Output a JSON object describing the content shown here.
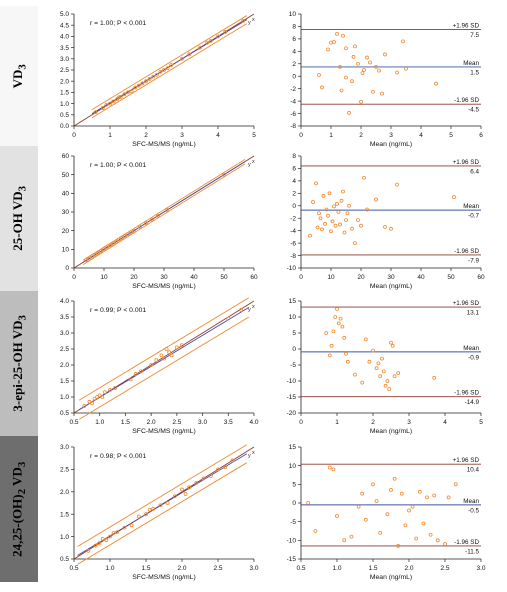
{
  "row_labels": [
    {
      "main": "VD",
      "sub": "3",
      "rest": ""
    },
    {
      "main": "25-OH VD",
      "sub": "3",
      "rest": ""
    },
    {
      "main": "3-epi-25-OH VD",
      "sub": "3",
      "rest": ""
    },
    {
      "main": "24,25-(OH)",
      "sub": "2",
      "rest": " VD",
      "sub2": "3"
    }
  ],
  "colors": {
    "band_backgrounds": [
      "#f7f7f7",
      "#e2e2e2",
      "#bdbdbd",
      "#6e6e6e"
    ],
    "band_text": [
      "#000000",
      "#000000",
      "#000000",
      "#000000"
    ],
    "points": "#ee8a32",
    "limit_lines": "#ee8a32",
    "identity_line": "#8b3a2a",
    "fit_line": "#4a4aa0",
    "reference_lines": "#8b3a2a",
    "mean_line": "#3a57a0",
    "axis": "#222222"
  },
  "chart_data": [
    {
      "type": "scatter",
      "row": 0,
      "plot": "correlation",
      "annotation": "r = 1.00; P < 0.001",
      "xlabel": "SFC-MS/MS (ng/mL)",
      "xlim": [
        0,
        5
      ],
      "ylim": [
        0,
        5
      ],
      "xticks": [
        "0",
        "1",
        "2",
        "3",
        "4",
        "5"
      ],
      "yticks": [
        "0.0",
        "0.5",
        "1.0",
        "1.5",
        "2.0",
        "2.5",
        "3.0",
        "3.5",
        "4.0",
        "4.5",
        "5.0"
      ],
      "line_labels": [
        "x",
        "y"
      ],
      "fit_line": [
        [
          0.5,
          0.55
        ],
        [
          4.8,
          4.75
        ]
      ],
      "limit_band": 0.18,
      "points": [
        [
          0.6,
          0.62
        ],
        [
          0.8,
          0.8
        ],
        [
          0.9,
          0.95
        ],
        [
          1.0,
          1.0
        ],
        [
          1.1,
          1.1
        ],
        [
          1.2,
          1.2
        ],
        [
          1.25,
          1.28
        ],
        [
          1.3,
          1.3
        ],
        [
          1.4,
          1.42
        ],
        [
          1.5,
          1.5
        ],
        [
          1.6,
          1.55
        ],
        [
          1.7,
          1.72
        ],
        [
          1.8,
          1.8
        ],
        [
          1.9,
          1.9
        ],
        [
          2.0,
          2.0
        ],
        [
          2.1,
          2.1
        ],
        [
          2.2,
          2.2
        ],
        [
          2.3,
          2.28
        ],
        [
          2.4,
          2.42
        ],
        [
          2.5,
          2.5
        ],
        [
          2.6,
          2.58
        ],
        [
          2.7,
          2.72
        ],
        [
          3.0,
          3.0
        ],
        [
          3.2,
          3.2
        ],
        [
          3.5,
          3.5
        ],
        [
          3.7,
          3.72
        ],
        [
          3.8,
          3.8
        ],
        [
          4.0,
          4.0
        ],
        [
          4.2,
          4.2
        ],
        [
          4.7,
          4.7
        ]
      ]
    },
    {
      "type": "scatter",
      "row": 0,
      "plot": "bland-altman",
      "xlabel": "Mean (ng/mL)",
      "xlim": [
        0,
        6
      ],
      "ylim": [
        -8,
        10
      ],
      "xticks": [
        "0",
        "1",
        "2",
        "3",
        "4",
        "5",
        "6"
      ],
      "yticks": [
        "-8",
        "-6",
        "-4",
        "-2",
        "0",
        "2",
        "4",
        "6",
        "8",
        "10"
      ],
      "upper_limit": {
        "label": "+1.96 SD",
        "value_label": "7.5",
        "value": 7.5
      },
      "mean": {
        "label": "Mean",
        "value_label": "1.5",
        "value": 1.5
      },
      "lower_limit": {
        "label": "-1.96 SD",
        "value_label": "-4.5",
        "value": -4.5
      },
      "points": [
        [
          0.6,
          0.2
        ],
        [
          0.7,
          -1.8
        ],
        [
          0.9,
          4.3
        ],
        [
          1.0,
          5.4
        ],
        [
          1.1,
          5.5
        ],
        [
          1.2,
          6.8
        ],
        [
          1.3,
          1.5
        ],
        [
          1.35,
          -2.3
        ],
        [
          1.4,
          6.5
        ],
        [
          1.5,
          4.5
        ],
        [
          1.5,
          -0.2
        ],
        [
          1.6,
          -5.9
        ],
        [
          1.7,
          -0.8
        ],
        [
          1.75,
          3.1
        ],
        [
          1.8,
          4.8
        ],
        [
          1.9,
          2.0
        ],
        [
          2.0,
          -4.1
        ],
        [
          2.05,
          0.5
        ],
        [
          2.1,
          1.0
        ],
        [
          2.2,
          3.0
        ],
        [
          2.3,
          2.2
        ],
        [
          2.4,
          -2.5
        ],
        [
          2.5,
          1.5
        ],
        [
          2.6,
          0.9
        ],
        [
          2.7,
          -2.8
        ],
        [
          2.8,
          3.5
        ],
        [
          3.2,
          0.6
        ],
        [
          3.4,
          5.6
        ],
        [
          3.5,
          1.2
        ],
        [
          4.5,
          -1.2
        ]
      ]
    },
    {
      "type": "scatter",
      "row": 1,
      "plot": "correlation",
      "annotation": "r = 1.00; P < 0.001",
      "xlabel": "SFC-MS/MS (ng/mL)",
      "xlim": [
        0,
        60
      ],
      "ylim": [
        0,
        60
      ],
      "xticks": [
        "0",
        "10",
        "20",
        "30",
        "40",
        "50",
        "60"
      ],
      "yticks": [
        "0",
        "10",
        "20",
        "30",
        "40",
        "50",
        "60"
      ],
      "line_labels": [
        "x",
        "y"
      ],
      "fit_line": [
        [
          3,
          3
        ],
        [
          57,
          57
        ]
      ],
      "limit_band": 1.2,
      "points": [
        [
          4,
          4.2
        ],
        [
          5,
          5
        ],
        [
          6,
          6.1
        ],
        [
          7,
          7
        ],
        [
          8,
          8
        ],
        [
          9,
          9.2
        ],
        [
          10,
          10
        ],
        [
          11,
          11
        ],
        [
          12,
          12.1
        ],
        [
          13,
          13
        ],
        [
          14,
          14
        ],
        [
          15,
          15.2
        ],
        [
          16,
          16
        ],
        [
          17,
          17
        ],
        [
          18,
          18.1
        ],
        [
          19,
          19
        ],
        [
          20,
          20
        ],
        [
          22,
          22.1
        ],
        [
          24,
          24
        ],
        [
          26,
          26
        ],
        [
          28,
          28
        ],
        [
          31,
          31.1
        ],
        [
          50,
          50
        ]
      ]
    },
    {
      "type": "scatter",
      "row": 1,
      "plot": "bland-altman",
      "xlabel": "Mean (ng/mL)",
      "xlim": [
        0,
        60
      ],
      "ylim": [
        -10,
        8
      ],
      "xticks": [
        "0",
        "10",
        "20",
        "30",
        "40",
        "50",
        "60"
      ],
      "yticks": [
        "-10",
        "-8",
        "-6",
        "-4",
        "-2",
        "0",
        "2",
        "4",
        "6",
        "8"
      ],
      "upper_limit": {
        "label": "+1.96 SD",
        "value_label": "6.4",
        "value": 6.4
      },
      "mean": {
        "label": "Mean",
        "value_label": "-0.7",
        "value": -0.7
      },
      "lower_limit": {
        "label": "-1.96 SD",
        "value_label": "-7.9",
        "value": -7.9
      },
      "points": [
        [
          3,
          -4.8
        ],
        [
          4,
          0.6
        ],
        [
          5,
          3.6
        ],
        [
          5.5,
          -3.5
        ],
        [
          6,
          -1.2
        ],
        [
          6.5,
          -2.0
        ],
        [
          7,
          -3.8
        ],
        [
          7.5,
          1.6
        ],
        [
          8,
          -2.9
        ],
        [
          8.5,
          -0.6
        ],
        [
          9,
          -1.6
        ],
        [
          9.5,
          2.0
        ],
        [
          10,
          -4.1
        ],
        [
          10.5,
          -2.5
        ],
        [
          11,
          -0.1
        ],
        [
          11.5,
          -3.2
        ],
        [
          12,
          0.3
        ],
        [
          12.5,
          -1.0
        ],
        [
          13,
          -3.0
        ],
        [
          13.5,
          0.8
        ],
        [
          14,
          2.3
        ],
        [
          14.5,
          -4.3
        ],
        [
          15,
          -2.3
        ],
        [
          15.5,
          -1.2
        ],
        [
          16,
          0.0
        ],
        [
          17,
          -3.7
        ],
        [
          18,
          -6.0
        ],
        [
          19,
          -2.3
        ],
        [
          20,
          -3.2
        ],
        [
          21,
          4.5
        ],
        [
          22,
          -0.6
        ],
        [
          25,
          1.0
        ],
        [
          28,
          -3.4
        ],
        [
          30,
          -3.7
        ],
        [
          32,
          3.4
        ],
        [
          51,
          1.4
        ]
      ]
    },
    {
      "type": "scatter",
      "row": 2,
      "plot": "correlation",
      "annotation": "r = 0.99; P < 0.001",
      "xlabel": "SFC-MS/MS (ng/mL)",
      "xlim": [
        0.5,
        4.0
      ],
      "ylim": [
        0.5,
        4.0
      ],
      "xticks": [
        "0.5",
        "1.0",
        "1.5",
        "2.0",
        "2.5",
        "3.0",
        "3.5",
        "4.0"
      ],
      "yticks": [
        "0.5",
        "1.0",
        "1.5",
        "2.0",
        "2.5",
        "3.0",
        "3.5",
        "4.0"
      ],
      "line_labels": [
        "x",
        "y"
      ],
      "fit_line": [
        [
          0.6,
          0.6
        ],
        [
          3.9,
          3.8
        ]
      ],
      "limit_band": 0.3,
      "points": [
        [
          0.7,
          0.72
        ],
        [
          0.8,
          0.85
        ],
        [
          0.85,
          0.8
        ],
        [
          0.9,
          0.95
        ],
        [
          0.95,
          1.0
        ],
        [
          1.0,
          1.05
        ],
        [
          1.05,
          1.0
        ],
        [
          1.1,
          1.15
        ],
        [
          1.2,
          1.22
        ],
        [
          1.3,
          1.28
        ],
        [
          1.6,
          1.55
        ],
        [
          1.7,
          1.72
        ],
        [
          1.8,
          1.8
        ],
        [
          2.0,
          2.0
        ],
        [
          2.1,
          2.15
        ],
        [
          2.2,
          2.3
        ],
        [
          2.25,
          2.2
        ],
        [
          2.3,
          2.5
        ],
        [
          2.35,
          2.4
        ],
        [
          2.4,
          2.3
        ],
        [
          2.5,
          2.55
        ],
        [
          2.6,
          2.62
        ],
        [
          3.5,
          3.45
        ],
        [
          3.75,
          3.72
        ]
      ]
    },
    {
      "type": "scatter",
      "row": 2,
      "plot": "bland-altman",
      "xlabel": "Mean (ng/mL)",
      "xlim": [
        0,
        5
      ],
      "ylim": [
        -20,
        15
      ],
      "xticks": [
        "0",
        "1",
        "2",
        "3",
        "4",
        "5"
      ],
      "yticks": [
        "-20",
        "-15",
        "-10",
        "-5",
        "0",
        "5",
        "10",
        "15"
      ],
      "upper_limit": {
        "label": "+1.96 SD",
        "value_label": "13.1",
        "value": 13.1
      },
      "mean": {
        "label": "Mean",
        "value_label": "-0.9",
        "value": -0.9
      },
      "lower_limit": {
        "label": "-1.96 SD",
        "value_label": "-14.9",
        "value": -14.9
      },
      "points": [
        [
          0.7,
          5.0
        ],
        [
          0.8,
          -2.0
        ],
        [
          0.85,
          1.0
        ],
        [
          0.9,
          5.5
        ],
        [
          0.95,
          10.0
        ],
        [
          1.0,
          12.5
        ],
        [
          1.05,
          8.0
        ],
        [
          1.1,
          9.5
        ],
        [
          1.15,
          7.0
        ],
        [
          1.2,
          3.5
        ],
        [
          1.25,
          -1.5
        ],
        [
          1.3,
          -4.0
        ],
        [
          1.5,
          -8.0
        ],
        [
          1.7,
          -10.5
        ],
        [
          1.8,
          3.0
        ],
        [
          1.9,
          -4.0
        ],
        [
          2.0,
          -0.5
        ],
        [
          2.1,
          -6.0
        ],
        [
          2.15,
          -4.5
        ],
        [
          2.2,
          -8.5
        ],
        [
          2.25,
          -3.0
        ],
        [
          2.3,
          -7.0
        ],
        [
          2.35,
          -11.5
        ],
        [
          2.4,
          -10.0
        ],
        [
          2.45,
          -12.5
        ],
        [
          2.5,
          2.0
        ],
        [
          2.55,
          1.0
        ],
        [
          2.6,
          -8.5
        ],
        [
          2.7,
          -7.5
        ],
        [
          3.7,
          -9.0
        ]
      ]
    },
    {
      "type": "scatter",
      "row": 3,
      "plot": "correlation",
      "annotation": "r = 0.98; P < 0.001",
      "xlabel": "SFC-MS/MS (ng/mL)",
      "xlim": [
        0.5,
        3.0
      ],
      "ylim": [
        0.5,
        3.0
      ],
      "xticks": [
        "0.5",
        "1.0",
        "1.5",
        "2.0",
        "2.5",
        "3.0"
      ],
      "yticks": [
        "0.5",
        "1.0",
        "1.5",
        "2.0",
        "2.5",
        "3.0"
      ],
      "line_labels": [
        "x",
        "y"
      ],
      "fit_line": [
        [
          0.55,
          0.58
        ],
        [
          2.9,
          2.85
        ]
      ],
      "limit_band": 0.2,
      "points": [
        [
          0.7,
          0.68
        ],
        [
          0.8,
          0.8
        ],
        [
          0.85,
          0.85
        ],
        [
          0.9,
          0.95
        ],
        [
          0.95,
          0.92
        ],
        [
          1.0,
          1.0
        ],
        [
          1.05,
          1.08
        ],
        [
          1.1,
          1.1
        ],
        [
          1.2,
          1.2
        ],
        [
          1.3,
          1.25
        ],
        [
          1.4,
          1.45
        ],
        [
          1.5,
          1.5
        ],
        [
          1.55,
          1.6
        ],
        [
          1.6,
          1.62
        ],
        [
          1.7,
          1.7
        ],
        [
          1.8,
          1.75
        ],
        [
          1.9,
          1.9
        ],
        [
          2.0,
          2.05
        ],
        [
          2.05,
          1.95
        ],
        [
          2.1,
          2.1
        ],
        [
          2.2,
          2.2
        ],
        [
          2.3,
          2.3
        ],
        [
          2.4,
          2.35
        ],
        [
          2.5,
          2.5
        ],
        [
          2.6,
          2.55
        ],
        [
          2.7,
          2.7
        ]
      ]
    },
    {
      "type": "scatter",
      "row": 3,
      "plot": "bland-altman",
      "xlabel": "Mean (ng/mL)",
      "xlim": [
        0.5,
        3.0
      ],
      "ylim": [
        -15,
        15
      ],
      "xticks": [
        "0.5",
        "1.0",
        "1.5",
        "2.0",
        "2.5",
        "3.0"
      ],
      "yticks": [
        "-15",
        "-10",
        "-5",
        "0",
        "5",
        "10",
        "15"
      ],
      "upper_limit": {
        "label": "+1.96 SD",
        "value_label": "10.4",
        "value": 10.4
      },
      "mean": {
        "label": "Mean",
        "value_label": "-0.5",
        "value": -0.5
      },
      "lower_limit": {
        "label": "-1.96 SD",
        "value_label": "-11.5",
        "value": -11.5
      },
      "points": [
        [
          0.6,
          0.0
        ],
        [
          0.7,
          -7.5
        ],
        [
          0.9,
          9.5
        ],
        [
          0.95,
          9.0
        ],
        [
          1.0,
          -3.5
        ],
        [
          1.1,
          -10.0
        ],
        [
          1.2,
          -9.0
        ],
        [
          1.3,
          -1.0
        ],
        [
          1.35,
          2.5
        ],
        [
          1.4,
          -4.5
        ],
        [
          1.5,
          5.0
        ],
        [
          1.55,
          0.5
        ],
        [
          1.6,
          -8.0
        ],
        [
          1.7,
          -3.0
        ],
        [
          1.75,
          3.5
        ],
        [
          1.8,
          6.5
        ],
        [
          1.85,
          -11.5
        ],
        [
          1.9,
          2.5
        ],
        [
          1.95,
          -6.0
        ],
        [
          2.0,
          -2.0
        ],
        [
          2.05,
          -1.0
        ],
        [
          2.1,
          -9.5
        ],
        [
          2.15,
          3.0
        ],
        [
          2.2,
          -5.5
        ],
        [
          2.25,
          1.5
        ],
        [
          2.3,
          -8.5
        ],
        [
          2.35,
          2.0
        ],
        [
          2.4,
          -10.0
        ],
        [
          2.5,
          -11.0
        ],
        [
          2.55,
          1.5
        ],
        [
          2.65,
          5.0
        ]
      ]
    }
  ]
}
